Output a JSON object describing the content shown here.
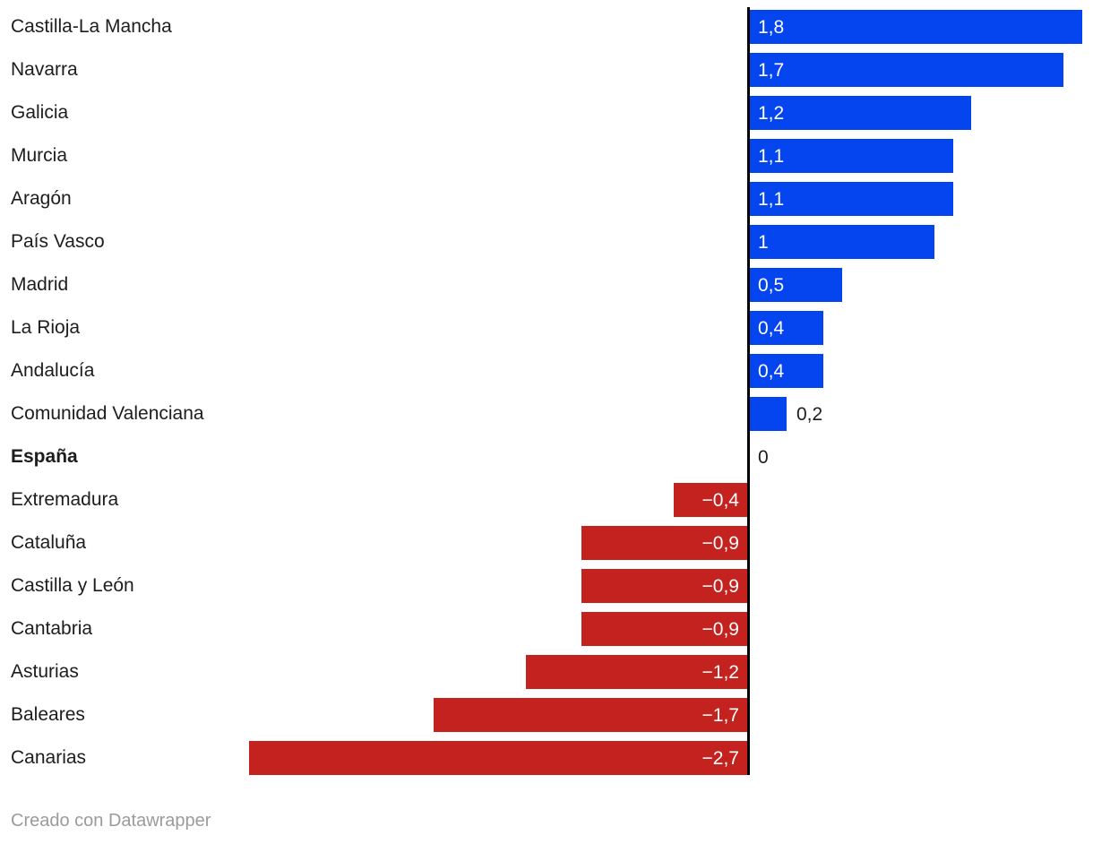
{
  "chart_data": {
    "type": "bar",
    "orientation": "horizontal",
    "xlim": [
      -2.7,
      1.8
    ],
    "grid": false,
    "legend": "none",
    "positive_color": "#0545f0",
    "negative_color": "#c4221f",
    "axis_color": "#000000",
    "items": [
      {
        "label": "Castilla-La Mancha",
        "value": 1.8,
        "display": "1,8",
        "bold": false
      },
      {
        "label": "Navarra",
        "value": 1.7,
        "display": "1,7",
        "bold": false
      },
      {
        "label": "Galicia",
        "value": 1.2,
        "display": "1,2",
        "bold": false
      },
      {
        "label": "Murcia",
        "value": 1.1,
        "display": "1,1",
        "bold": false
      },
      {
        "label": "Aragón",
        "value": 1.1,
        "display": "1,1",
        "bold": false
      },
      {
        "label": "País Vasco",
        "value": 1.0,
        "display": "1",
        "bold": false
      },
      {
        "label": "Madrid",
        "value": 0.5,
        "display": "0,5",
        "bold": false
      },
      {
        "label": "La Rioja",
        "value": 0.4,
        "display": "0,4",
        "bold": false
      },
      {
        "label": "Andalucía",
        "value": 0.4,
        "display": "0,4",
        "bold": false
      },
      {
        "label": "Comunidad Valenciana",
        "value": 0.2,
        "display": "0,2",
        "bold": false
      },
      {
        "label": "España",
        "value": 0,
        "display": "0",
        "bold": true
      },
      {
        "label": "Extremadura",
        "value": -0.4,
        "display": "−0,4",
        "bold": false
      },
      {
        "label": "Cataluña",
        "value": -0.9,
        "display": "−0,9",
        "bold": false
      },
      {
        "label": "Castilla y León",
        "value": -0.9,
        "display": "−0,9",
        "bold": false
      },
      {
        "label": "Cantabria",
        "value": -0.9,
        "display": "−0,9",
        "bold": false
      },
      {
        "label": "Asturias",
        "value": -1.2,
        "display": "−1,2",
        "bold": false
      },
      {
        "label": "Baleares",
        "value": -1.7,
        "display": "−1,7",
        "bold": false
      },
      {
        "label": "Canarias",
        "value": -2.7,
        "display": "−2,7",
        "bold": false
      }
    ]
  },
  "footer": {
    "attribution": "Creado con Datawrapper"
  }
}
